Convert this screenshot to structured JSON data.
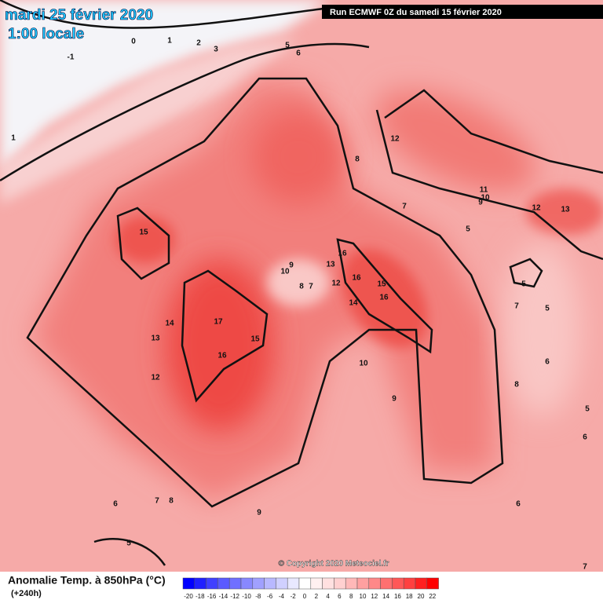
{
  "header": {
    "date": "mardi 25 février 2020",
    "time": "1:00 locale",
    "run": "Run ECMWF 0Z du samedi 15 février 2020"
  },
  "footer": {
    "title": "Anomalie Temp. à 850hPa (°C)",
    "lead": "(+240h)",
    "copyright": "© Copyright 2020 Meteociel.fr"
  },
  "scale": {
    "ticks": [
      -20,
      -18,
      -16,
      -14,
      -12,
      -10,
      -8,
      -6,
      -4,
      -2,
      0,
      2,
      4,
      6,
      8,
      10,
      12,
      14,
      16,
      18,
      20,
      22
    ],
    "colors": [
      "#0000ff",
      "#2020ff",
      "#4040ff",
      "#5a5aff",
      "#7070ff",
      "#8888ff",
      "#a0a0ff",
      "#b8b8ff",
      "#d0d0ff",
      "#e8e8ff",
      "#ffffff",
      "#fff0f0",
      "#ffe0e0",
      "#ffd0d0",
      "#ffb8b8",
      "#ffa0a0",
      "#ff8888",
      "#ff7070",
      "#ff5858",
      "#ff4040",
      "#ff2020",
      "#ff0000"
    ]
  },
  "contour_labels": [
    15,
    17,
    16,
    15,
    14,
    13,
    12,
    16,
    16,
    15,
    16,
    14,
    13,
    12,
    10,
    9,
    8,
    7,
    10,
    9,
    8,
    7,
    6,
    5,
    5,
    5,
    6,
    12,
    11,
    10,
    9,
    12,
    13,
    8,
    7,
    5,
    6,
    7,
    8,
    9,
    6,
    5,
    7,
    1,
    0,
    -1,
    1,
    2,
    3,
    5,
    6
  ]
}
